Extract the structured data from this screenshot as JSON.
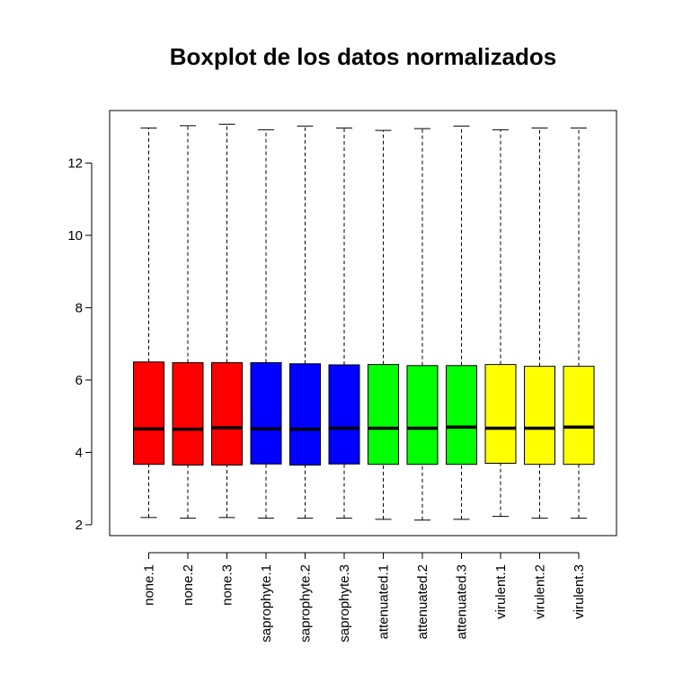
{
  "chart_data": {
    "type": "boxplot",
    "title": "Boxplot de los datos normalizados",
    "xlabel": "",
    "ylabel": "",
    "ylim": [
      1.7,
      13.45
    ],
    "yticks": [
      2,
      4,
      6,
      8,
      10,
      12
    ],
    "ytick_labels": [
      "2",
      "4",
      "6",
      "8",
      "10",
      "12"
    ],
    "grid": false,
    "categories": [
      "none.1",
      "none.2",
      "none.3",
      "saprophyte.1",
      "saprophyte.2",
      "saprophyte.3",
      "attenuated.1",
      "attenuated.2",
      "attenuated.3",
      "virulent.1",
      "virulent.2",
      "virulent.3"
    ],
    "box_colors": [
      "#FF0000",
      "#FF0000",
      "#FF0000",
      "#0000FF",
      "#0000FF",
      "#0000FF",
      "#00FF00",
      "#00FF00",
      "#00FF00",
      "#FFFF00",
      "#FFFF00",
      "#FFFF00"
    ],
    "boxes": [
      {
        "min": 2.2,
        "q1": 3.67,
        "median": 4.65,
        "q3": 6.5,
        "max": 12.97
      },
      {
        "min": 2.18,
        "q1": 3.65,
        "median": 4.64,
        "q3": 6.48,
        "max": 13.03
      },
      {
        "min": 2.2,
        "q1": 3.65,
        "median": 4.68,
        "q3": 6.48,
        "max": 13.07
      },
      {
        "min": 2.18,
        "q1": 3.68,
        "median": 4.65,
        "q3": 6.48,
        "max": 12.92
      },
      {
        "min": 2.18,
        "q1": 3.65,
        "median": 4.64,
        "q3": 6.45,
        "max": 13.02
      },
      {
        "min": 2.18,
        "q1": 3.68,
        "median": 4.67,
        "q3": 6.42,
        "max": 12.97
      },
      {
        "min": 2.15,
        "q1": 3.67,
        "median": 4.67,
        "q3": 6.43,
        "max": 12.9
      },
      {
        "min": 2.13,
        "q1": 3.67,
        "median": 4.67,
        "q3": 6.4,
        "max": 12.95
      },
      {
        "min": 2.15,
        "q1": 3.67,
        "median": 4.7,
        "q3": 6.4,
        "max": 13.02
      },
      {
        "min": 2.23,
        "q1": 3.7,
        "median": 4.67,
        "q3": 6.43,
        "max": 12.92
      },
      {
        "min": 2.18,
        "q1": 3.67,
        "median": 4.67,
        "q3": 6.38,
        "max": 12.97
      },
      {
        "min": 2.18,
        "q1": 3.67,
        "median": 4.7,
        "q3": 6.38,
        "max": 12.97
      }
    ]
  }
}
